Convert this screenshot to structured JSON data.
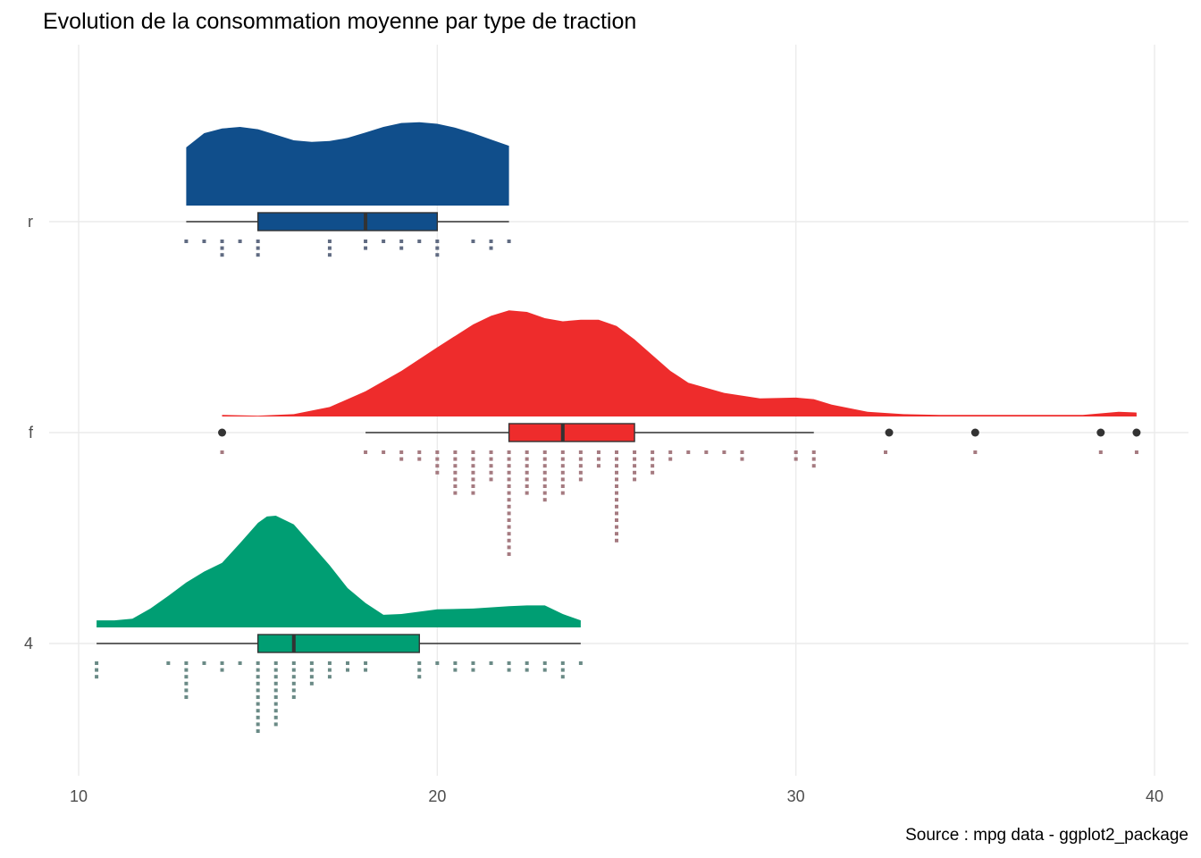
{
  "chart_data": {
    "type": "raincloud",
    "title": "Evolution de la consommation moyenne par type de traction",
    "caption": "Source : mpg data - ggplot2_package",
    "xlabel": "",
    "ylabel": "",
    "xlim": [
      10,
      40
    ],
    "x_ticks": [
      10,
      20,
      30,
      40
    ],
    "grid": true,
    "categories": [
      "r",
      "f",
      "4"
    ],
    "series": [
      {
        "name": "r",
        "color": "#104E8B",
        "point_color": "#606B82",
        "box": {
          "whisker_low": 13,
          "q1": 15,
          "median": 18,
          "q3": 20,
          "whisker_high": 22
        },
        "outliers": [],
        "density_x": [
          13,
          13.5,
          14,
          14.5,
          15,
          15.5,
          16,
          16.5,
          17,
          17.5,
          18,
          18.5,
          19,
          19.5,
          20,
          20.5,
          21,
          21.5,
          22
        ],
        "density_y": [
          0.74,
          0.92,
          0.98,
          1.0,
          0.97,
          0.9,
          0.83,
          0.81,
          0.82,
          0.86,
          0.93,
          1.0,
          1.05,
          1.06,
          1.04,
          0.99,
          0.92,
          0.84,
          0.76
        ],
        "dots": [
          [
            13,
            1
          ],
          [
            13.5,
            1
          ],
          [
            14,
            3
          ],
          [
            14.5,
            1
          ],
          [
            15,
            3
          ],
          [
            17,
            3
          ],
          [
            18,
            2
          ],
          [
            18.5,
            1
          ],
          [
            19,
            2
          ],
          [
            19.5,
            1
          ],
          [
            20,
            3
          ],
          [
            21,
            1
          ],
          [
            21.5,
            2
          ],
          [
            22,
            1
          ]
        ]
      },
      {
        "name": "f",
        "color": "#EE2C2C",
        "point_color": "#A57A80",
        "box": {
          "whisker_low": 18,
          "q1": 22,
          "median": 23.5,
          "q3": 25.5,
          "whisker_high": 30.5
        },
        "outliers": [
          14,
          32.6,
          35,
          38.5,
          39.5
        ],
        "density_x": [
          14,
          15,
          16,
          17,
          18,
          19,
          20,
          21,
          21.5,
          22,
          22.5,
          23,
          23.5,
          24,
          24.5,
          25,
          25.5,
          26,
          26.5,
          27,
          28,
          29,
          30,
          30.5,
          31,
          32,
          33,
          34,
          36,
          38,
          39,
          39.5
        ],
        "density_y": [
          0.02,
          0.01,
          0.03,
          0.12,
          0.32,
          0.58,
          0.88,
          1.17,
          1.28,
          1.35,
          1.33,
          1.25,
          1.21,
          1.23,
          1.23,
          1.15,
          0.98,
          0.78,
          0.58,
          0.43,
          0.3,
          0.23,
          0.24,
          0.22,
          0.15,
          0.06,
          0.03,
          0.02,
          0.02,
          0.02,
          0.06,
          0.05
        ],
        "dots": [
          [
            14,
            1
          ],
          [
            18,
            1
          ],
          [
            18.5,
            1
          ],
          [
            19,
            2
          ],
          [
            19.5,
            2
          ],
          [
            20,
            4
          ],
          [
            20.5,
            7
          ],
          [
            21,
            7
          ],
          [
            21.5,
            5
          ],
          [
            22,
            16
          ],
          [
            22.5,
            7
          ],
          [
            23,
            8
          ],
          [
            23.5,
            7
          ],
          [
            24,
            5
          ],
          [
            24.5,
            3
          ],
          [
            25,
            14
          ],
          [
            25.5,
            5
          ],
          [
            26,
            4
          ],
          [
            26.5,
            2
          ],
          [
            27,
            1
          ],
          [
            27.5,
            1
          ],
          [
            28,
            1
          ],
          [
            28.5,
            2
          ],
          [
            30,
            2
          ],
          [
            30.5,
            3
          ],
          [
            32.5,
            1
          ],
          [
            35,
            1
          ],
          [
            38.5,
            1
          ],
          [
            39.5,
            1
          ]
        ]
      },
      {
        "name": "4",
        "color": "#009E73",
        "point_color": "#6A8A86",
        "box": {
          "whisker_low": 10.5,
          "q1": 15,
          "median": 16,
          "q3": 19.5,
          "whisker_high": 24
        },
        "outliers": [],
        "density_x": [
          10.5,
          11,
          11.5,
          12,
          12.5,
          13,
          13.5,
          14,
          14.5,
          15,
          15.25,
          15.5,
          16,
          16.5,
          17,
          17.5,
          18,
          18.5,
          19,
          20,
          21,
          22,
          22.5,
          23,
          23.5,
          24
        ],
        "density_y": [
          0.09,
          0.09,
          0.11,
          0.24,
          0.4,
          0.57,
          0.71,
          0.82,
          1.07,
          1.33,
          1.41,
          1.42,
          1.31,
          1.05,
          0.79,
          0.5,
          0.31,
          0.16,
          0.17,
          0.23,
          0.24,
          0.27,
          0.28,
          0.28,
          0.17,
          0.09
        ],
        "dots": [
          [
            10.5,
            3
          ],
          [
            12.5,
            1
          ],
          [
            13,
            6
          ],
          [
            13.5,
            1
          ],
          [
            14,
            2
          ],
          [
            14.5,
            1
          ],
          [
            15,
            11
          ],
          [
            15.5,
            10
          ],
          [
            16,
            6
          ],
          [
            16.5,
            4
          ],
          [
            17,
            3
          ],
          [
            17.5,
            2
          ],
          [
            18,
            2
          ],
          [
            19.5,
            3
          ],
          [
            20,
            1
          ],
          [
            20.5,
            2
          ],
          [
            21,
            2
          ],
          [
            21.5,
            1
          ],
          [
            22,
            2
          ],
          [
            22.5,
            2
          ],
          [
            23,
            2
          ],
          [
            23.5,
            3
          ],
          [
            24,
            1
          ]
        ]
      }
    ]
  }
}
